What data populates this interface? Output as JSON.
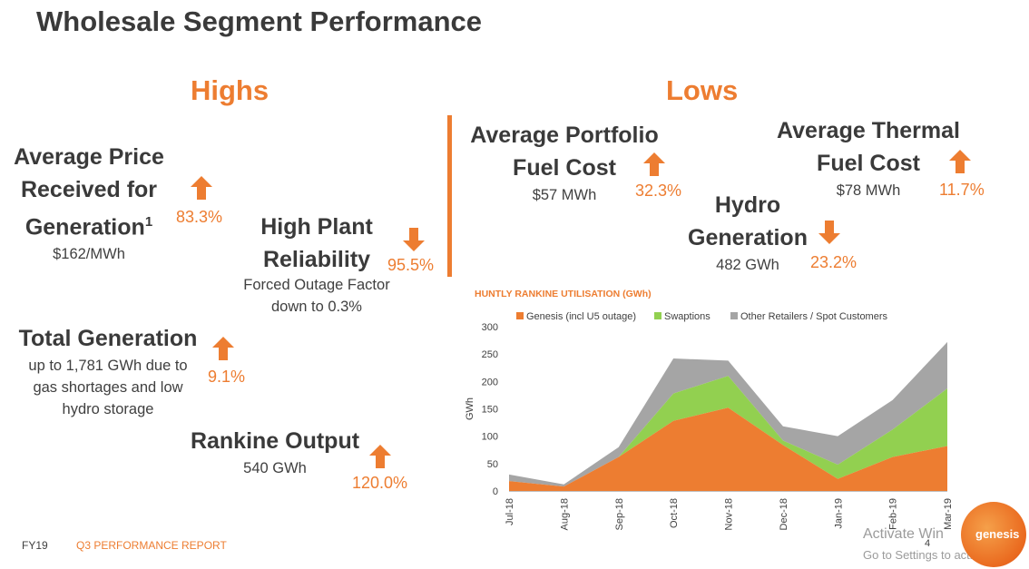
{
  "title": "Wholesale Segment Performance",
  "highs": {
    "heading": "Highs",
    "avg_price": {
      "line1": "Average Price",
      "line2": "Received for",
      "line3": "Generation",
      "superscript": "1",
      "value": "$162/MWh",
      "pct": "83.3%",
      "direction": "up"
    },
    "reliability": {
      "line1": "High Plant",
      "line2": "Reliability",
      "sub1": "Forced Outage Factor",
      "sub2": "down to 0.3%",
      "pct": "95.5%",
      "direction": "down"
    },
    "total_gen": {
      "line1": "Total Generation",
      "sub1": "up to 1,781 GWh due to",
      "sub2": "gas shortages and low",
      "sub3": "hydro storage",
      "pct": "9.1%",
      "direction": "up"
    },
    "rankine": {
      "line1": "Rankine Output",
      "value": "540 GWh",
      "pct": "120.0%",
      "direction": "up"
    }
  },
  "lows": {
    "heading": "Lows",
    "portfolio_fuel": {
      "line1": "Average Portfolio",
      "line2": "Fuel Cost",
      "value": "$57 MWh",
      "pct": "32.3%",
      "direction": "up"
    },
    "thermal_fuel": {
      "line1": "Average Thermal",
      "line2": "Fuel Cost",
      "value": "$78 MWh",
      "pct": "11.7%",
      "direction": "up"
    },
    "hydro": {
      "line1": "Hydro",
      "line2": "Generation",
      "value": "482 GWh",
      "pct": "23.2%",
      "direction": "down"
    }
  },
  "colors": {
    "accent": "#ed7d31",
    "genesis": "#ed7d31",
    "swaptions": "#92d050",
    "other": "#a5a5a5",
    "text": "#3a3a3a"
  },
  "chart_data": {
    "type": "area",
    "stacked": true,
    "title": "HUNTLY RANKINE UTILISATION (GWh)",
    "ylabel": "GWh",
    "xlabel": "",
    "categories": [
      "Jul-18",
      "Aug-18",
      "Sep-18",
      "Oct-18",
      "Nov-18",
      "Dec-18",
      "Jan-19",
      "Feb-19",
      "Mar-19"
    ],
    "series": [
      {
        "name": "Genesis (incl U5 outage)",
        "values": [
          18,
          8,
          62,
          128,
          152,
          84,
          22,
          62,
          82
        ]
      },
      {
        "name": "Swaptions",
        "values": [
          0,
          0,
          0,
          50,
          58,
          8,
          26,
          50,
          105
        ]
      },
      {
        "name": "Other Retailers / Spot Customers",
        "values": [
          12,
          4,
          18,
          64,
          28,
          26,
          52,
          54,
          85
        ]
      }
    ],
    "ylim": [
      0,
      300
    ],
    "yticks": [
      0,
      50,
      100,
      150,
      200,
      250,
      300
    ],
    "legend_position": "top",
    "grid": false
  },
  "page_number": "4",
  "footer": {
    "left": "FY19",
    "right": "Q3 PERFORMANCE REPORT"
  },
  "logo": {
    "text": "genesis"
  },
  "watermark": {
    "line1": "Activate Win",
    "line2": "Go to Settings to activate W"
  }
}
